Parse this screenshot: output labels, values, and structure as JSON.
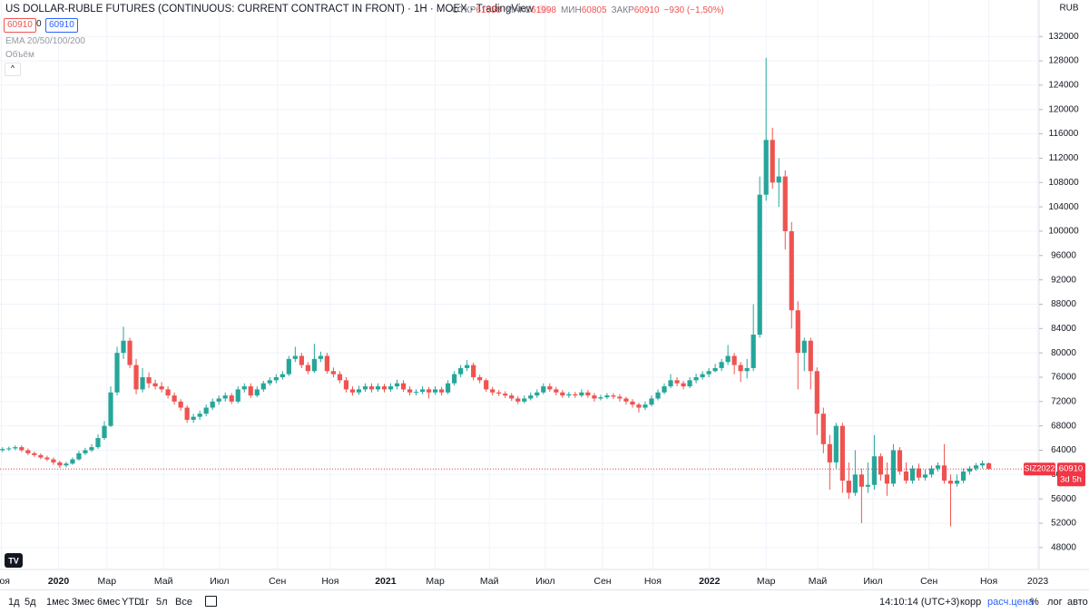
{
  "header": {
    "title": "US DOLLAR-RUBLE FUTURES (CONTINUOUS: CURRENT CONTRACT IN FRONT) · 1H · MOEX · TradingView",
    "ohlc": [
      {
        "label": "ОТКР",
        "value": "61858"
      },
      {
        "label": "МАКС",
        "value": "61998"
      },
      {
        "label": "МИН",
        "value": "60805"
      },
      {
        "label": "ЗАКР",
        "value": "60910"
      }
    ],
    "change": "−930 (−1,50%)",
    "sell": "60910",
    "spread": "0",
    "buy": "60910",
    "indicators": [
      "EMA 20/50/100/200",
      "Объём"
    ],
    "currency": "RUB"
  },
  "chart_data": {
    "type": "candlestick",
    "up_color": "#26a69a",
    "down_color": "#ef5350",
    "open": [
      64000,
      64200,
      64300,
      64500,
      64000,
      63500,
      63200,
      62800,
      62500,
      62000,
      61500,
      61800,
      62500,
      63500,
      64000,
      64500,
      66000,
      68000,
      73500,
      80000,
      82000,
      78000,
      74000,
      76000,
      75000,
      74500,
      74000,
      73000,
      72000,
      71000,
      69000,
      69500,
      70000,
      71000,
      72000,
      72500,
      73000,
      72000,
      74000,
      74500,
      73000,
      74000,
      75000,
      75500,
      76000,
      76500,
      79000,
      79500,
      78000,
      77000,
      79000,
      79500,
      77000,
      76500,
      75500,
      74000,
      73500,
      74000,
      74500,
      74000,
      74500,
      74000,
      74500,
      75000,
      74000,
      73500,
      73600,
      74000,
      73500,
      74000,
      73500,
      75000,
      76500,
      77500,
      78000,
      76000,
      75500,
      74000,
      73500,
      73300,
      73000,
      72500,
      72000,
      72500,
      73000,
      73500,
      74500,
      74000,
      73500,
      73000,
      73200,
      73000,
      73500,
      73000,
      72500,
      72700,
      73000,
      72800,
      72500,
      72000,
      71500,
      71000,
      71500,
      72500,
      73500,
      74500,
      75500,
      75000,
      74500,
      75500,
      76000,
      76500,
      77000,
      77500,
      78500,
      79500,
      78000,
      77000,
      77500,
      83000,
      106000,
      115000,
      108000,
      109000,
      100000,
      87000,
      80000,
      82000,
      77000,
      70000,
      65000,
      62000,
      68000,
      59000,
      57000,
      60000,
      58000,
      58300,
      63000,
      60000,
      58500,
      64000,
      60500,
      59000,
      61000,
      59500,
      60000,
      61000,
      61500,
      59000,
      58500,
      59000,
      60500,
      61000,
      61500,
      61858
    ],
    "high": [
      64500,
      64600,
      64800,
      64800,
      64300,
      63800,
      63500,
      63100,
      62800,
      62300,
      62100,
      62800,
      63900,
      64400,
      65000,
      66600,
      68800,
      74500,
      81000,
      84300,
      82500,
      79000,
      77500,
      76800,
      75600,
      75200,
      74500,
      73500,
      72400,
      71400,
      70000,
      70500,
      71500,
      72500,
      73000,
      73500,
      73400,
      74500,
      75000,
      75000,
      74500,
      75400,
      76000,
      76500,
      77000,
      79500,
      81000,
      80000,
      78500,
      81500,
      80200,
      80000,
      77600,
      77000,
      76000,
      74500,
      74600,
      75000,
      75000,
      75000,
      74900,
      75000,
      75600,
      75500,
      74500,
      74000,
      74500,
      74400,
      74500,
      74400,
      75500,
      77000,
      78000,
      78800,
      78400,
      76400,
      75800,
      74400,
      73900,
      73700,
      73400,
      72900,
      73000,
      73500,
      74000,
      75000,
      75000,
      74400,
      73900,
      73600,
      73600,
      74000,
      73900,
      73400,
      73100,
      73400,
      73400,
      73200,
      72800,
      72400,
      71800,
      72000,
      73000,
      74000,
      75000,
      76500,
      76000,
      75400,
      76000,
      76600,
      77000,
      77500,
      78200,
      79000,
      81300,
      80000,
      78500,
      79000,
      88000,
      109000,
      128500,
      117000,
      112000,
      110000,
      101500,
      88500,
      82500,
      82500,
      77600,
      71000,
      66500,
      68500,
      68500,
      62000,
      64000,
      61000,
      62000,
      66500,
      63500,
      62000,
      65000,
      64500,
      62000,
      61500,
      61800,
      60800,
      61500,
      62000,
      65000,
      60000,
      60000,
      61000,
      61400,
      61900,
      62300,
      61998
    ],
    "low": [
      63700,
      63900,
      64000,
      63700,
      63200,
      62900,
      62500,
      62200,
      61600,
      61100,
      61200,
      61600,
      62300,
      63200,
      63700,
      64200,
      65700,
      67800,
      73000,
      79000,
      77500,
      73200,
      73500,
      74200,
      74000,
      73500,
      72500,
      71500,
      70500,
      68500,
      68500,
      69000,
      69600,
      70600,
      71500,
      72000,
      71600,
      71700,
      73500,
      72600,
      72700,
      73600,
      74600,
      75000,
      75600,
      76200,
      78500,
      77500,
      76500,
      76700,
      78500,
      76600,
      76000,
      75000,
      73500,
      73000,
      73100,
      73600,
      73500,
      73600,
      73500,
      73600,
      74000,
      73600,
      73000,
      73000,
      73200,
      72500,
      73100,
      73000,
      73200,
      74600,
      76000,
      77000,
      75500,
      75000,
      73600,
      73000,
      72900,
      72600,
      72100,
      71600,
      71700,
      72200,
      72600,
      73200,
      73600,
      73000,
      72600,
      72600,
      72600,
      72700,
      72600,
      72000,
      72200,
      72400,
      72400,
      72000,
      71500,
      71000,
      70200,
      70600,
      71200,
      72200,
      73200,
      74200,
      74500,
      74000,
      74200,
      75000,
      75600,
      76000,
      76800,
      77000,
      78000,
      76500,
      75200,
      75800,
      77000,
      82500,
      105000,
      107000,
      104000,
      97000,
      84000,
      74000,
      77000,
      74000,
      66500,
      63500,
      57500,
      61000,
      57000,
      56000,
      56500,
      52000,
      57000,
      57500,
      59000,
      56500,
      58000,
      60000,
      58500,
      58500,
      59000,
      59000,
      59500,
      60500,
      58500,
      51500,
      58000,
      58600,
      60000,
      60600,
      61000,
      60805
    ],
    "close": [
      64200,
      64300,
      64500,
      64000,
      63500,
      63200,
      62800,
      62500,
      62000,
      61500,
      61800,
      62500,
      63500,
      64000,
      64500,
      66000,
      68000,
      73500,
      80000,
      82000,
      78000,
      74000,
      76000,
      75000,
      74500,
      74000,
      73000,
      72000,
      71000,
      69000,
      69500,
      70000,
      71000,
      72000,
      72500,
      73000,
      72000,
      74000,
      74500,
      73000,
      74000,
      75000,
      75500,
      76000,
      76500,
      79000,
      79500,
      78000,
      77000,
      79000,
      79500,
      77000,
      76500,
      75500,
      74000,
      73500,
      74000,
      74500,
      74000,
      74500,
      74000,
      74500,
      75000,
      74000,
      73500,
      73600,
      74000,
      73500,
      74000,
      73500,
      75000,
      76500,
      77500,
      78000,
      76000,
      75500,
      74000,
      73500,
      73300,
      73000,
      72500,
      72000,
      72500,
      73000,
      73500,
      74500,
      74000,
      73500,
      73000,
      73200,
      73000,
      73500,
      73000,
      72500,
      72700,
      73000,
      72800,
      72500,
      72000,
      71500,
      71000,
      71500,
      72500,
      73500,
      74500,
      75500,
      75000,
      74500,
      75500,
      76000,
      76500,
      77000,
      77500,
      78500,
      79500,
      78000,
      77000,
      77500,
      83000,
      106000,
      115000,
      108000,
      109000,
      100000,
      87000,
      80000,
      82000,
      77000,
      70000,
      65000,
      62000,
      68000,
      59000,
      57000,
      60000,
      58000,
      58300,
      63000,
      60000,
      58500,
      64000,
      60500,
      59000,
      61000,
      59500,
      60000,
      61000,
      61500,
      59000,
      58500,
      59000,
      60500,
      61000,
      61500,
      61858,
      60910
    ],
    "xlim": [
      -0.4,
      162.9
    ],
    "xticks": [
      {
        "value": -0.2,
        "label": "Ноя"
      },
      {
        "value": 8.8,
        "label": "2020",
        "bold": true
      },
      {
        "value": 16.4,
        "label": "Мар"
      },
      {
        "value": 25.3,
        "label": "Май"
      },
      {
        "value": 34.1,
        "label": "Июл"
      },
      {
        "value": 43.2,
        "label": "Сен"
      },
      {
        "value": 51.5,
        "label": "Ноя"
      },
      {
        "value": 60.2,
        "label": "2021",
        "bold": true
      },
      {
        "value": 68.0,
        "label": "Мар"
      },
      {
        "value": 76.5,
        "label": "Май"
      },
      {
        "value": 85.3,
        "label": "Июл"
      },
      {
        "value": 94.3,
        "label": "Сен"
      },
      {
        "value": 102.2,
        "label": "Ноя"
      },
      {
        "value": 111.1,
        "label": "2022",
        "bold": true
      },
      {
        "value": 120.0,
        "label": "Мар"
      },
      {
        "value": 128.1,
        "label": "Май"
      },
      {
        "value": 136.8,
        "label": "Июл"
      },
      {
        "value": 145.6,
        "label": "Сен"
      },
      {
        "value": 155.0,
        "label": "Ноя"
      },
      {
        "value": 162.7,
        "label": "2023"
      }
    ],
    "ylim": [
      44400,
      138000
    ],
    "yticks": [
      48000,
      52000,
      56000,
      60000,
      64000,
      68000,
      72000,
      76000,
      80000,
      84000,
      88000,
      92000,
      96000,
      100000,
      104000,
      108000,
      112000,
      116000,
      120000,
      124000,
      128000,
      132000
    ],
    "grid": true,
    "last_price": {
      "symbol": "SIZ2022",
      "value": 60910,
      "countdown": "3d 5h",
      "color": "#f23645"
    }
  },
  "footer": {
    "ranges": [
      "1д",
      "5д",
      "1мес",
      "3мес",
      "6мес",
      "YTD",
      "1г",
      "5л",
      "Все"
    ],
    "time": "14:10:14 (UTC+3)",
    "options": [
      "корр",
      "расч.цена",
      "%",
      "лог",
      "авто"
    ]
  }
}
